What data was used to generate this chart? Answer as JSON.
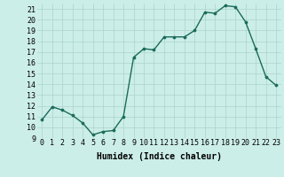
{
  "x": [
    0,
    1,
    2,
    3,
    4,
    5,
    6,
    7,
    8,
    9,
    10,
    11,
    12,
    13,
    14,
    15,
    16,
    17,
    18,
    19,
    20,
    21,
    22,
    23
  ],
  "y": [
    10.7,
    11.9,
    11.6,
    11.1,
    10.4,
    9.3,
    9.6,
    9.7,
    11.0,
    16.5,
    17.3,
    17.2,
    18.4,
    18.4,
    18.4,
    19.0,
    20.7,
    20.6,
    21.3,
    21.2,
    19.8,
    17.3,
    14.7,
    13.9
  ],
  "line_color": "#1a6b5a",
  "bg_color": "#cceee8",
  "grid_color": "#aad4cc",
  "xlabel": "Humidex (Indice chaleur)",
  "ylim": [
    9,
    21.5
  ],
  "xlim": [
    -0.5,
    23.5
  ],
  "yticks": [
    9,
    10,
    11,
    12,
    13,
    14,
    15,
    16,
    17,
    18,
    19,
    20,
    21
  ],
  "xticks": [
    0,
    1,
    2,
    3,
    4,
    5,
    6,
    7,
    8,
    9,
    10,
    11,
    12,
    13,
    14,
    15,
    16,
    17,
    18,
    19,
    20,
    21,
    22,
    23
  ],
  "xlabel_fontsize": 7,
  "tick_fontsize": 6,
  "marker_size": 2.2,
  "line_width": 1.0
}
